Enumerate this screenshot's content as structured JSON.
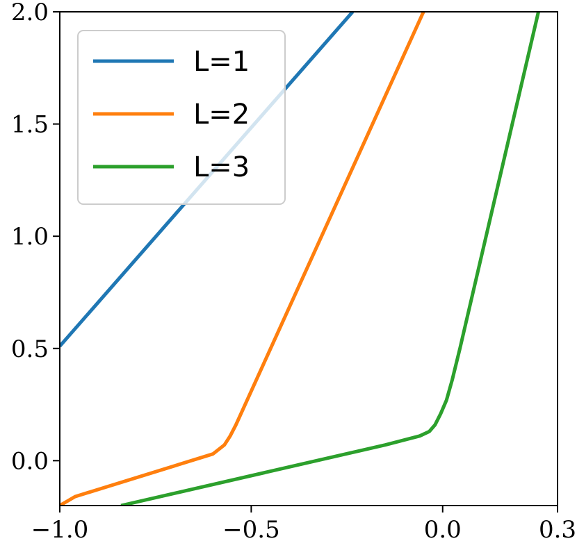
{
  "chart_data": {
    "type": "line",
    "title": "",
    "xlabel": "",
    "ylabel": "",
    "xlim": [
      -1.0,
      0.3
    ],
    "ylim": [
      -0.2,
      2.0
    ],
    "x_ticks": [
      {
        "value": -1.0,
        "label": "−1.0"
      },
      {
        "value": -0.5,
        "label": "−0.5"
      },
      {
        "value": 0.0,
        "label": "0.0"
      },
      {
        "value": 0.3,
        "label": "0.3"
      }
    ],
    "y_ticks": [
      {
        "value": 0.0,
        "label": "0.0"
      },
      {
        "value": 0.5,
        "label": "0.5"
      },
      {
        "value": 1.0,
        "label": "1.0"
      },
      {
        "value": 1.5,
        "label": "1.5"
      },
      {
        "value": 2.0,
        "label": "2.0"
      }
    ],
    "grid": false,
    "legend_position": "top-left",
    "series": [
      {
        "name": "L=1",
        "color": "#1f77b4",
        "points": [
          [
            -1.0,
            0.51
          ],
          [
            -0.235,
            2.0
          ]
        ]
      },
      {
        "name": "L=2",
        "color": "#ff7f0e",
        "points": [
          [
            -1.0,
            -0.2
          ],
          [
            -0.96,
            -0.16
          ],
          [
            -0.6,
            0.03
          ],
          [
            -0.57,
            0.07
          ],
          [
            -0.555,
            0.11
          ],
          [
            -0.54,
            0.16
          ],
          [
            -0.05,
            2.0
          ]
        ]
      },
      {
        "name": "L=3",
        "color": "#2ca02c",
        "points": [
          [
            -0.84,
            -0.2
          ],
          [
            -0.15,
            0.07
          ],
          [
            -0.06,
            0.11
          ],
          [
            -0.035,
            0.13
          ],
          [
            -0.02,
            0.16
          ],
          [
            -0.005,
            0.21
          ],
          [
            0.01,
            0.27
          ],
          [
            0.025,
            0.36
          ],
          [
            0.045,
            0.5
          ],
          [
            0.25,
            2.0
          ]
        ]
      }
    ]
  }
}
